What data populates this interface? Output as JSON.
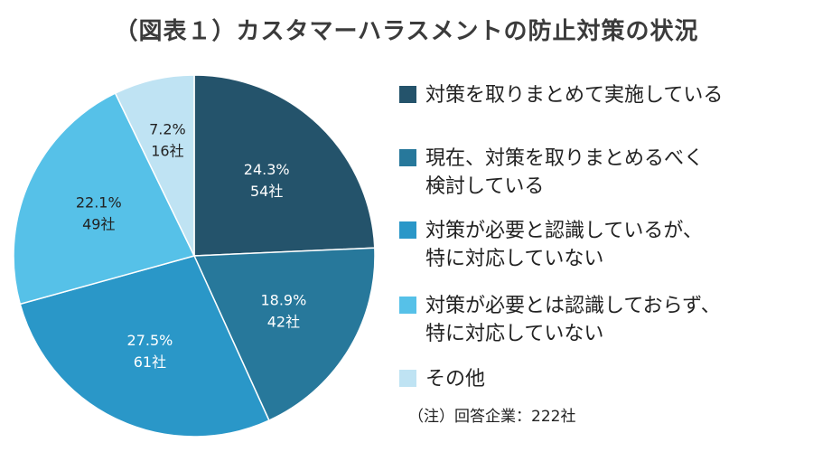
{
  "title": "（図表１）カスタマーハラスメントの防止対策の状況",
  "note": "（注）回答企業：222社",
  "chart_data": {
    "type": "pie",
    "start_angle_deg": 0,
    "direction": "clockwise",
    "slices": [
      {
        "label": "対策を取りまとめて実施している",
        "legend_lines": [
          "対策を取りまとめて実施している"
        ],
        "percent": 24.3,
        "percent_label": "24.3%",
        "count_label": "54社",
        "color": "#24536b",
        "text_color": "#ffffff"
      },
      {
        "label": "現在、対策を取りまとめるべく検討している",
        "legend_lines": [
          "現在、対策を取りまとめるべく",
          "検討している"
        ],
        "percent": 18.9,
        "percent_label": "18.9%",
        "count_label": "42社",
        "color": "#27789b",
        "text_color": "#ffffff"
      },
      {
        "label": "対策が必要と認識しているが、特に対応していない",
        "legend_lines": [
          "対策が必要と認識しているが、",
          "特に対応していない"
        ],
        "percent": 27.5,
        "percent_label": "27.5%",
        "count_label": "61社",
        "color": "#2a97c8",
        "text_color": "#ffffff"
      },
      {
        "label": "対策が必要とは認識しておらず、特に対応していない",
        "legend_lines": [
          "対策が必要とは認識しておらず、",
          "特に対応していない"
        ],
        "percent": 22.1,
        "percent_label": "22.1%",
        "count_label": "49社",
        "color": "#56c1e8",
        "text_color": "#222222"
      },
      {
        "label": "その他",
        "legend_lines": [
          "その他"
        ],
        "percent": 7.2,
        "percent_label": "7.2%",
        "count_label": "16社",
        "color": "#bfe3f3",
        "text_color": "#222222"
      }
    ]
  }
}
